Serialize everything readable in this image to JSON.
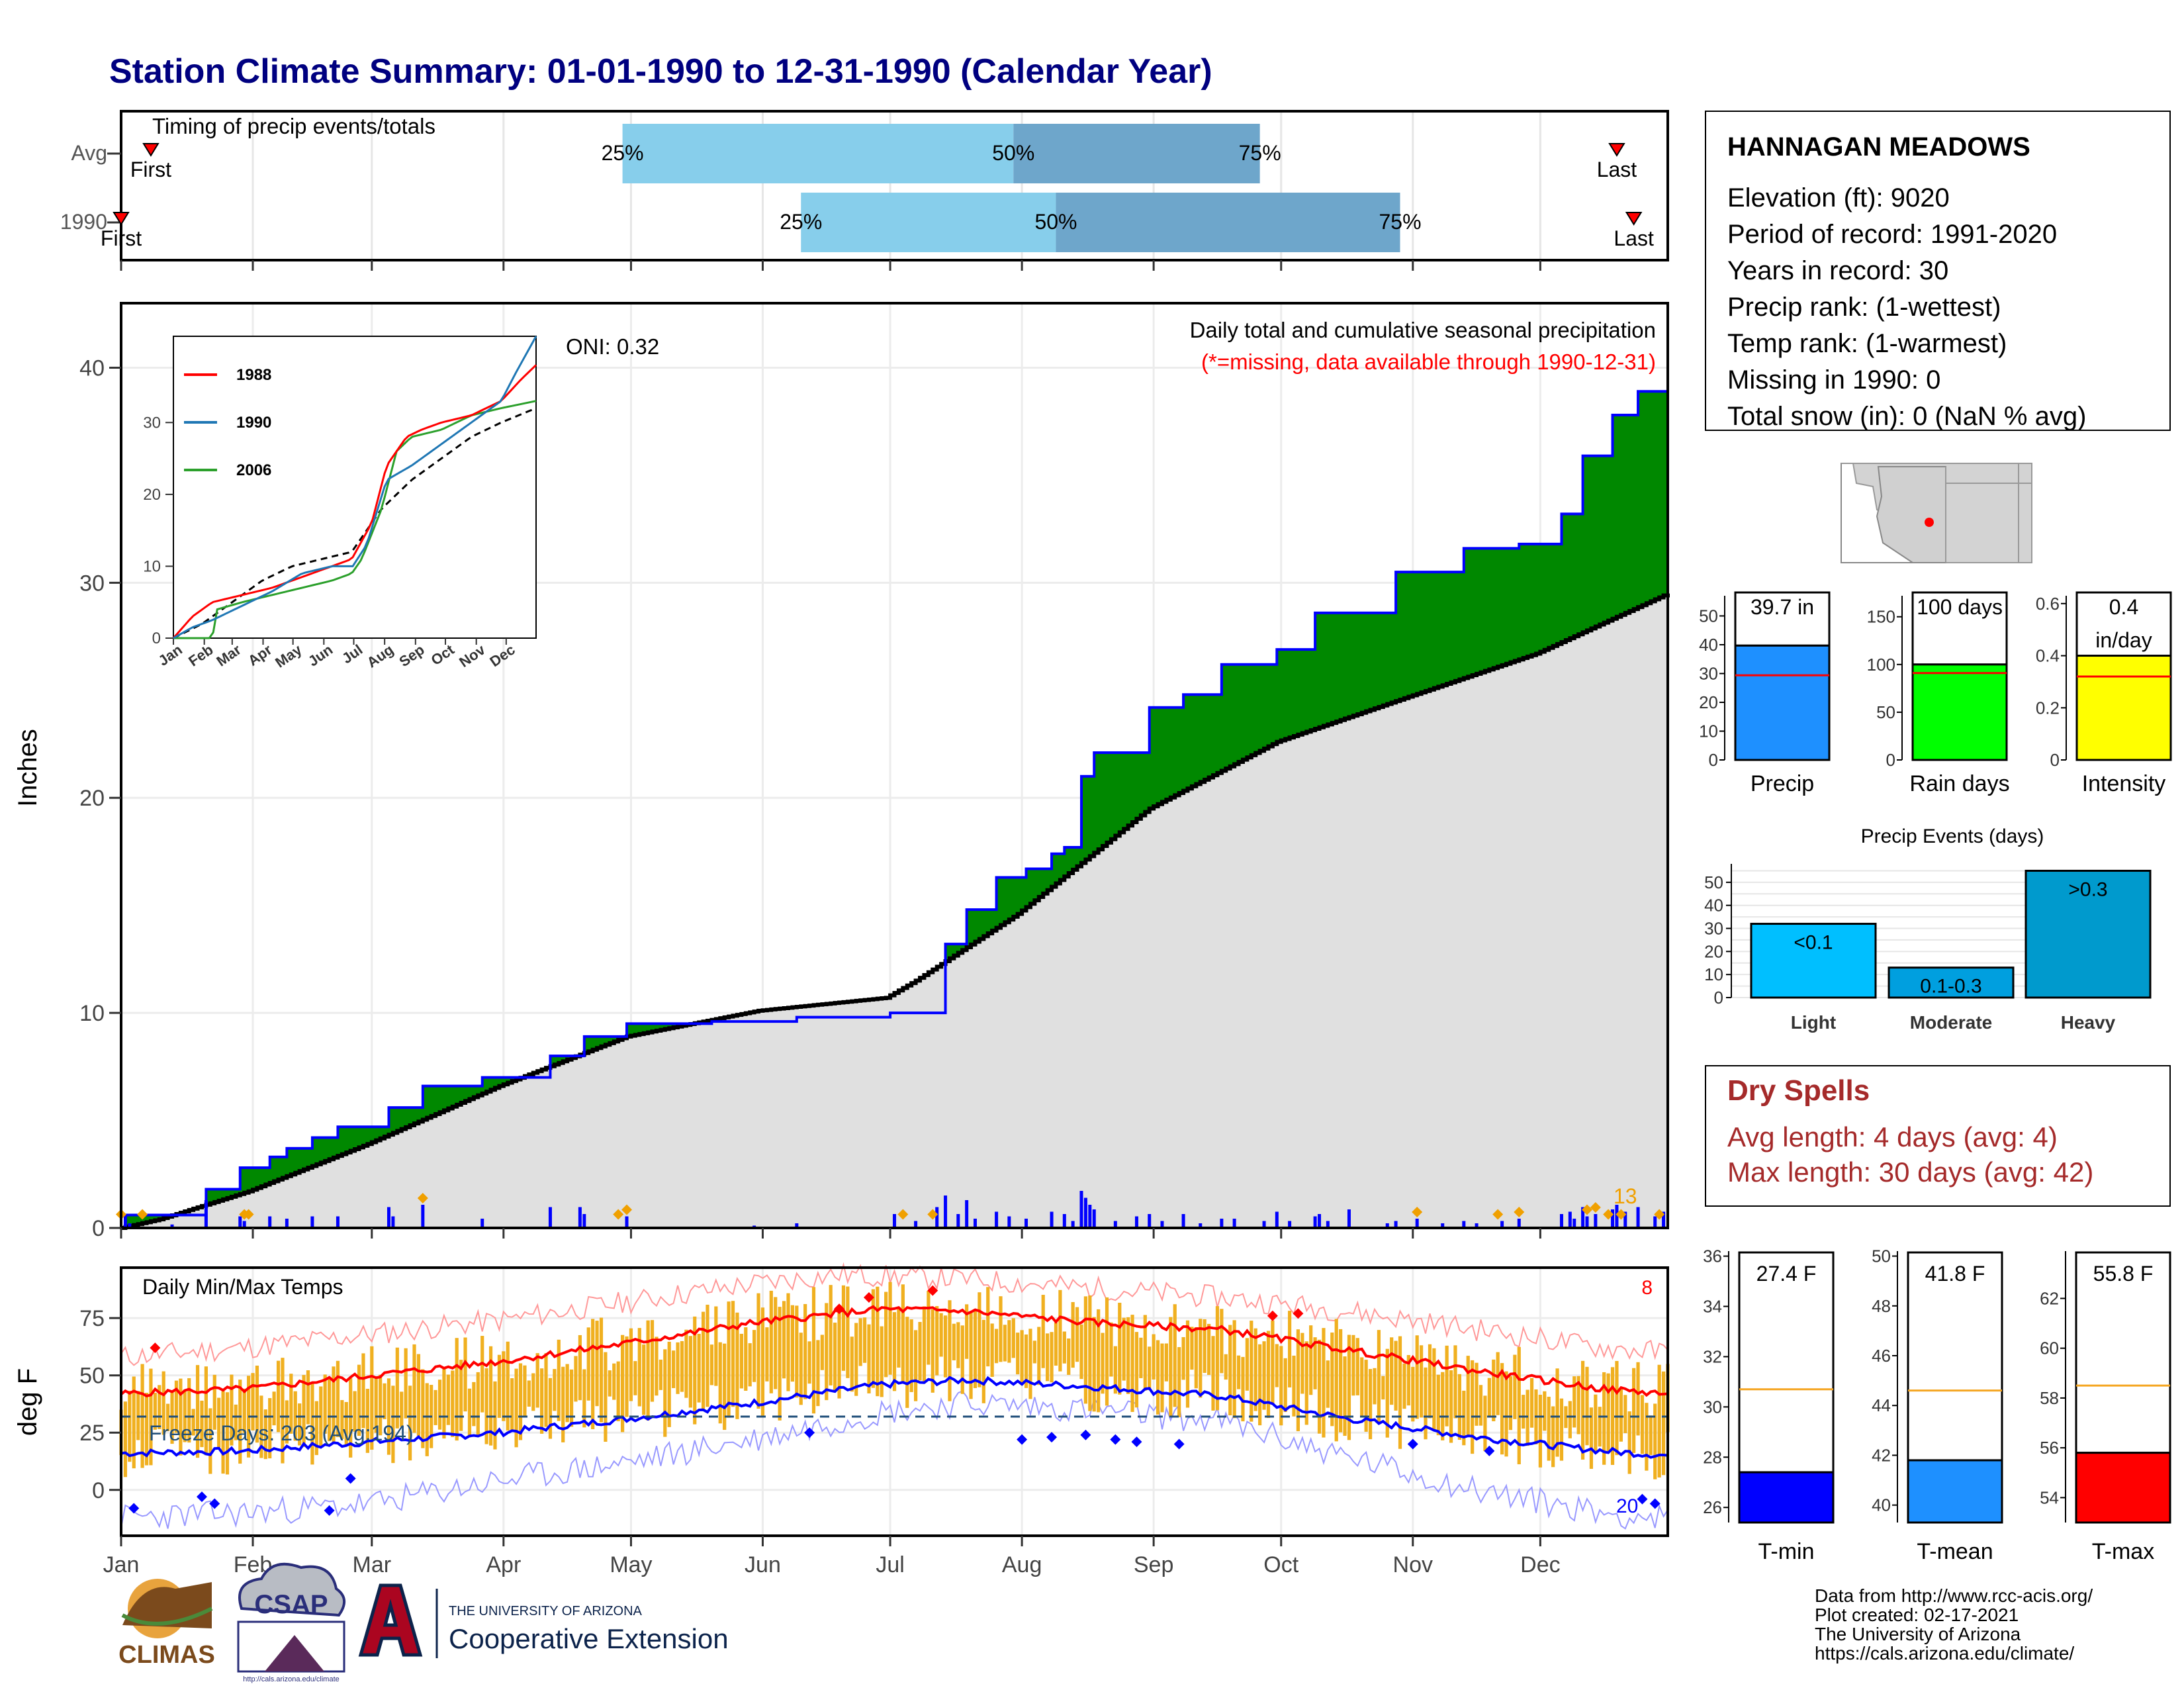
{
  "title": "Station Climate Summary: 01-01-1990 to 12-31-1990 (Calendar Year)",
  "colors": {
    "title": "#000080",
    "q_light": "#87ceeb",
    "q_dark": "#6ea6cb",
    "green": "#008800",
    "brown": "#8b5a00",
    "gray_fill": "#e0e0e0",
    "blue": "#0000ff",
    "orange": "#f0b020",
    "red": "#ff0000",
    "dry_spell": "#a52a2a",
    "precip_bar": "#1e90ff",
    "rain_bar": "#00ff00",
    "intensity_bar": "#ffff00",
    "light_bar": "#00bfff",
    "moderate_bar": "#009fdf",
    "heavy_bar": "#009acd",
    "tmin_bar": "#0000ff",
    "tmean_bar": "#1e90ff",
    "tmax_bar": "#ff0000"
  },
  "timing": {
    "label": "Timing of precip events/totals",
    "rows": [
      {
        "name": "Avg",
        "first_doy": 8,
        "last_doy": 353,
        "q25": 119,
        "q50": 211,
        "q75": 269,
        "first_label": "First",
        "last_label": "Last"
      },
      {
        "name": "1990",
        "first_doy": 1,
        "last_doy": 357,
        "q25": 161,
        "q50": 221,
        "q75": 302,
        "first_label": "First",
        "last_label": "Last"
      }
    ],
    "q_labels": [
      "25%",
      "50%",
      "75%"
    ]
  },
  "precip": {
    "ylabel": "Inches",
    "yticks": [
      "0",
      "10",
      "20",
      "30",
      "40"
    ],
    "ylim": [
      0,
      43
    ],
    "annotation_title": "Daily total and cumulative seasonal precipitation",
    "annotation_missing": "(*=missing, data available through 1990-12-31)",
    "oni_text": "ONI: 0.32",
    "max_daily_label": "13",
    "cumulative_1990": [
      [
        1,
        0
      ],
      [
        2,
        0.6
      ],
      [
        13,
        0.6
      ],
      [
        21,
        1.8
      ],
      [
        29,
        2.8
      ],
      [
        36,
        3.3
      ],
      [
        40,
        3.7
      ],
      [
        46,
        4.2
      ],
      [
        52,
        4.7
      ],
      [
        64,
        5.6
      ],
      [
        72,
        6.6
      ],
      [
        86,
        7.0
      ],
      [
        102,
        8.0
      ],
      [
        110,
        8.9
      ],
      [
        120,
        9.5
      ],
      [
        140,
        9.6
      ],
      [
        160,
        9.8
      ],
      [
        182,
        10.0
      ],
      [
        195,
        13.2
      ],
      [
        200,
        14.8
      ],
      [
        207,
        16.3
      ],
      [
        214,
        16.7
      ],
      [
        220,
        17.4
      ],
      [
        223,
        17.7
      ],
      [
        227,
        21.0
      ],
      [
        230,
        22.1
      ],
      [
        243,
        24.2
      ],
      [
        251,
        24.8
      ],
      [
        260,
        26.2
      ],
      [
        273,
        26.9
      ],
      [
        282,
        28.6
      ],
      [
        301,
        30.5
      ],
      [
        317,
        31.6
      ],
      [
        330,
        31.8
      ],
      [
        340,
        33.2
      ],
      [
        345,
        35.9
      ],
      [
        352,
        37.8
      ],
      [
        358,
        38.9
      ],
      [
        365,
        39.7
      ]
    ],
    "cumulative_avg": [
      [
        1,
        0
      ],
      [
        10,
        0.4
      ],
      [
        31,
        1.7
      ],
      [
        59,
        3.9
      ],
      [
        90,
        6.6
      ],
      [
        120,
        8.9
      ],
      [
        151,
        10.1
      ],
      [
        181,
        10.7
      ],
      [
        188,
        11.5
      ],
      [
        212,
        14.6
      ],
      [
        243,
        19.5
      ],
      [
        273,
        22.6
      ],
      [
        304,
        24.7
      ],
      [
        334,
        26.7
      ],
      [
        365,
        29.5
      ]
    ],
    "daily_bars": [
      [
        2,
        0.6
      ],
      [
        3,
        0.2
      ],
      [
        13,
        0.15
      ],
      [
        21,
        1.2
      ],
      [
        29,
        0.5
      ],
      [
        30,
        0.3
      ],
      [
        36,
        0.5
      ],
      [
        40,
        0.4
      ],
      [
        46,
        0.5
      ],
      [
        52,
        0.5
      ],
      [
        64,
        0.9
      ],
      [
        65,
        0.5
      ],
      [
        72,
        1.0
      ],
      [
        86,
        0.4
      ],
      [
        102,
        0.9
      ],
      [
        109,
        0.9
      ],
      [
        110,
        0.6
      ],
      [
        120,
        0.5
      ],
      [
        150,
        0.1
      ],
      [
        160,
        0.2
      ],
      [
        183,
        0.6
      ],
      [
        188,
        0.3
      ],
      [
        193,
        0.9
      ],
      [
        195,
        1.4
      ],
      [
        198,
        0.6
      ],
      [
        200,
        1.2
      ],
      [
        202,
        0.4
      ],
      [
        207,
        0.7
      ],
      [
        210,
        0.5
      ],
      [
        214,
        0.4
      ],
      [
        220,
        0.7
      ],
      [
        223,
        0.6
      ],
      [
        225,
        0.3
      ],
      [
        227,
        1.6
      ],
      [
        228,
        1.3
      ],
      [
        229,
        1.0
      ],
      [
        230,
        0.8
      ],
      [
        235,
        0.3
      ],
      [
        240,
        0.5
      ],
      [
        243,
        0.6
      ],
      [
        246,
        0.3
      ],
      [
        251,
        0.6
      ],
      [
        255,
        0.2
      ],
      [
        260,
        0.4
      ],
      [
        263,
        0.4
      ],
      [
        270,
        0.3
      ],
      [
        273,
        0.7
      ],
      [
        276,
        0.3
      ],
      [
        282,
        0.5
      ],
      [
        283,
        0.6
      ],
      [
        285,
        0.3
      ],
      [
        290,
        0.8
      ],
      [
        299,
        0.2
      ],
      [
        301,
        0.3
      ],
      [
        306,
        0.4
      ],
      [
        312,
        0.2
      ],
      [
        317,
        0.3
      ],
      [
        320,
        0.2
      ],
      [
        326,
        0.3
      ],
      [
        330,
        0.4
      ],
      [
        340,
        0.6
      ],
      [
        342,
        0.7
      ],
      [
        343,
        0.4
      ],
      [
        345,
        0.9
      ],
      [
        346,
        0.5
      ],
      [
        348,
        0.6
      ],
      [
        352,
        0.8
      ],
      [
        353,
        1.0
      ],
      [
        355,
        0.7
      ],
      [
        358,
        0.9
      ],
      [
        362,
        0.5
      ],
      [
        364,
        0.7
      ]
    ],
    "extreme_marks": [
      1,
      6,
      30,
      31,
      72,
      118,
      120,
      185,
      192,
      306,
      325,
      330,
      346,
      348,
      351,
      354,
      363
    ]
  },
  "inset": {
    "legend": [
      {
        "name": "1988",
        "color": "#ff0000"
      },
      {
        "name": "1990",
        "color": "#1f77b4"
      },
      {
        "name": "2006",
        "color": "#2ca02c"
      }
    ],
    "yticks": [
      "0",
      "10",
      "20",
      "30"
    ],
    "xticks": [
      "Jan",
      "Feb",
      "Mar",
      "Apr",
      "May",
      "Jun",
      "Jul",
      "Aug",
      "Sep",
      "Oct",
      "Nov",
      "Dec"
    ],
    "series_1988": [
      [
        1,
        0
      ],
      [
        20,
        3
      ],
      [
        40,
        5
      ],
      [
        70,
        6
      ],
      [
        100,
        7
      ],
      [
        130,
        8.5
      ],
      [
        160,
        10
      ],
      [
        180,
        11
      ],
      [
        200,
        16
      ],
      [
        215,
        24
      ],
      [
        235,
        28
      ],
      [
        250,
        29
      ],
      [
        270,
        30
      ],
      [
        300,
        31
      ],
      [
        330,
        33
      ],
      [
        350,
        36
      ],
      [
        365,
        38
      ]
    ],
    "series_1990": [
      [
        1,
        0
      ],
      [
        20,
        1.5
      ],
      [
        40,
        2.5
      ],
      [
        70,
        4.5
      ],
      [
        100,
        6.5
      ],
      [
        130,
        9
      ],
      [
        160,
        10
      ],
      [
        181,
        10
      ],
      [
        195,
        13
      ],
      [
        215,
        22
      ],
      [
        240,
        24
      ],
      [
        270,
        27
      ],
      [
        300,
        30
      ],
      [
        330,
        33
      ],
      [
        345,
        37
      ],
      [
        365,
        42
      ]
    ],
    "series_2006": [
      [
        1,
        0
      ],
      [
        40,
        0
      ],
      [
        45,
        4
      ],
      [
        70,
        5
      ],
      [
        100,
        6
      ],
      [
        130,
        7
      ],
      [
        160,
        8
      ],
      [
        180,
        9
      ],
      [
        190,
        11
      ],
      [
        210,
        18
      ],
      [
        225,
        26
      ],
      [
        240,
        28
      ],
      [
        270,
        29
      ],
      [
        300,
        31
      ],
      [
        330,
        32
      ],
      [
        365,
        33
      ]
    ],
    "series_avg": [
      [
        1,
        0
      ],
      [
        30,
        2
      ],
      [
        60,
        5
      ],
      [
        90,
        8
      ],
      [
        120,
        10
      ],
      [
        150,
        11
      ],
      [
        180,
        12
      ],
      [
        210,
        18
      ],
      [
        240,
        22
      ],
      [
        270,
        25
      ],
      [
        300,
        28
      ],
      [
        330,
        30
      ],
      [
        365,
        32
      ]
    ]
  },
  "temps": {
    "label": "Daily Min/Max Temps",
    "ylabel": "deg F",
    "yticks": [
      "0",
      "25",
      "50",
      "75"
    ],
    "ylim": [
      -20,
      97
    ],
    "freeze_text": "Freeze Days: 203 (Avg:194)",
    "freeze_line": 32,
    "record_high_count": "8",
    "record_low_count": "20",
    "avg_max_knots": [
      [
        1,
        42
      ],
      [
        30,
        44
      ],
      [
        60,
        50
      ],
      [
        90,
        56
      ],
      [
        120,
        64
      ],
      [
        150,
        73
      ],
      [
        180,
        79
      ],
      [
        200,
        78
      ],
      [
        230,
        73
      ],
      [
        260,
        70
      ],
      [
        290,
        61
      ],
      [
        320,
        52
      ],
      [
        350,
        44
      ],
      [
        365,
        42
      ]
    ],
    "avg_min_knots": [
      [
        1,
        16
      ],
      [
        30,
        17
      ],
      [
        60,
        21
      ],
      [
        90,
        25
      ],
      [
        120,
        31
      ],
      [
        150,
        38
      ],
      [
        180,
        46
      ],
      [
        200,
        48
      ],
      [
        230,
        45
      ],
      [
        260,
        41
      ],
      [
        290,
        31
      ],
      [
        320,
        23
      ],
      [
        350,
        17
      ],
      [
        365,
        15
      ]
    ],
    "record_max_knots": [
      [
        1,
        58
      ],
      [
        30,
        62
      ],
      [
        60,
        68
      ],
      [
        90,
        74
      ],
      [
        120,
        82
      ],
      [
        150,
        90
      ],
      [
        170,
        94
      ],
      [
        200,
        92
      ],
      [
        230,
        88
      ],
      [
        260,
        84
      ],
      [
        290,
        78
      ],
      [
        320,
        70
      ],
      [
        350,
        62
      ],
      [
        365,
        60
      ]
    ],
    "record_min_knots": [
      [
        1,
        -12
      ],
      [
        30,
        -10
      ],
      [
        60,
        -6
      ],
      [
        90,
        4
      ],
      [
        120,
        12
      ],
      [
        150,
        22
      ],
      [
        180,
        34
      ],
      [
        200,
        38
      ],
      [
        230,
        35
      ],
      [
        260,
        30
      ],
      [
        290,
        14
      ],
      [
        320,
        0
      ],
      [
        350,
        -10
      ],
      [
        365,
        -13
      ]
    ]
  },
  "months": [
    "Jan",
    "Feb",
    "Mar",
    "Apr",
    "May",
    "Jun",
    "Jul",
    "Aug",
    "Sep",
    "Oct",
    "Nov",
    "Dec"
  ],
  "station": {
    "name": "HANNAGAN MEADOWS",
    "lines": [
      "Elevation (ft): 9020",
      "Period of record: 1991-2020",
      "Years in record: 30",
      "Precip rank:  (1-wettest)",
      "Temp rank:  (1-warmest)",
      "Missing in 1990: 0",
      "Total snow (in): 0 (NaN % avg)"
    ]
  },
  "mini_bars": [
    {
      "name": "Precip",
      "value": 39.7,
      "avg": 29.4,
      "label": "39.7 in",
      "ymax": 57,
      "ticks": [
        0,
        10,
        20,
        30,
        40,
        50
      ]
    },
    {
      "name": "Rain days",
      "value": 100,
      "avg": 91,
      "label": "100 days",
      "ymax": 172,
      "ticks": [
        0,
        50,
        100,
        150
      ]
    },
    {
      "name": "Intensity",
      "value": 0.4,
      "avg": 0.32,
      "label": "0.4\nin/day",
      "ymax": 0.63,
      "ticks": [
        0.0,
        0.2,
        0.4,
        0.6
      ]
    }
  ],
  "precip_events": {
    "title": "Precip Events (days)",
    "categories": [
      "Light",
      "Moderate",
      "Heavy"
    ],
    "values": [
      32,
      13,
      55
    ],
    "labels": [
      "<0.1",
      "0.1-0.3",
      ">0.3"
    ],
    "ticks": [
      0,
      10,
      20,
      30,
      40,
      50
    ],
    "ymax": 58
  },
  "dry_spells": {
    "title": "Dry Spells",
    "avg_line": "Avg length: 4 days (avg: 4)",
    "max_line": "Max length: 30 days (avg: 42)"
  },
  "temp_bars": [
    {
      "name": "T-min",
      "value": 27.4,
      "avg": 30.7,
      "label": "27.4 F",
      "ymin": 25.4,
      "ymax": 36.2,
      "ticks": [
        26,
        28,
        30,
        32,
        34,
        36
      ]
    },
    {
      "name": "T-mean",
      "value": 41.8,
      "avg": 44.6,
      "label": "41.8 F",
      "ymin": 39.3,
      "ymax": 50.2,
      "ticks": [
        40,
        42,
        44,
        46,
        48,
        50
      ]
    },
    {
      "name": "T-max",
      "value": 55.8,
      "avg": 58.5,
      "label": "55.8 F",
      "ymin": 53.0,
      "ymax": 63.9,
      "ticks": [
        54,
        56,
        58,
        60,
        62
      ]
    }
  ],
  "footer": {
    "lines": [
      "Data from http://www.rcc-acis.org/",
      "Plot created: 02-17-2021",
      "The University of Arizona",
      "https://cals.arizona.edu/climate/"
    ],
    "climas": "CLIMAS",
    "csap": "CSAP",
    "csap_url": "http://cals.arizona.edu/climate",
    "ua_small": "THE UNIVERSITY OF ARIZONA",
    "ua_big": "Cooperative Extension"
  }
}
